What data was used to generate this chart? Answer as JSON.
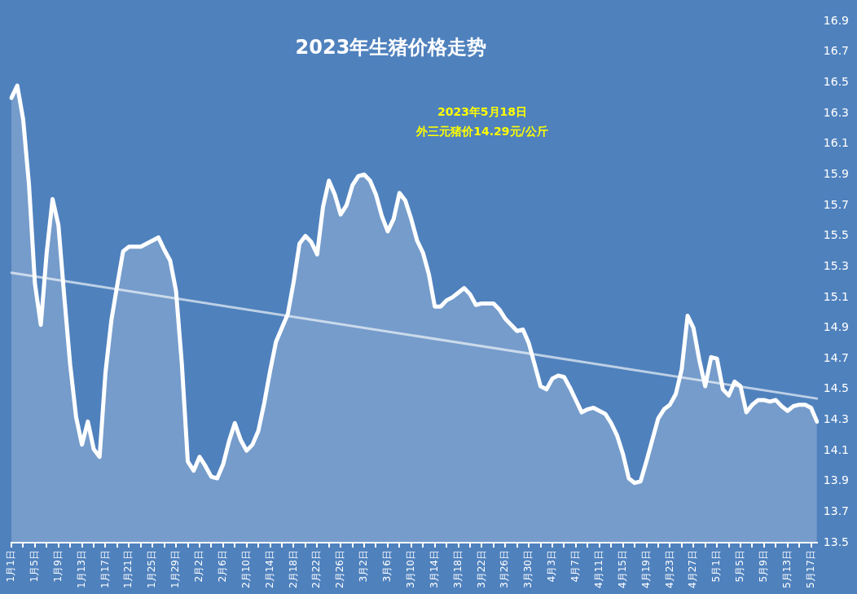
{
  "chart_data": {
    "type": "area",
    "title": "2023年生猪价格走势",
    "annotations": [
      "2023年5月18日",
      "外三元猪价14.29元/公斤"
    ],
    "categories": [
      "1月1日",
      null,
      null,
      null,
      "1月5日",
      null,
      null,
      null,
      "1月9日",
      null,
      null,
      null,
      "1月13日",
      null,
      null,
      null,
      "1月17日",
      null,
      null,
      null,
      "1月21日",
      null,
      null,
      null,
      "1月25日",
      null,
      null,
      null,
      "1月29日",
      null,
      null,
      null,
      "2月2日",
      null,
      null,
      null,
      "2月6日",
      null,
      null,
      null,
      "2月10日",
      null,
      null,
      null,
      "2月14日",
      null,
      null,
      null,
      "2月18日",
      null,
      null,
      null,
      "2月22日",
      null,
      null,
      null,
      "2月26日",
      null,
      null,
      null,
      "3月2日",
      null,
      null,
      null,
      "3月6日",
      null,
      null,
      null,
      "3月10日",
      null,
      null,
      null,
      "3月14日",
      null,
      null,
      null,
      "3月18日",
      null,
      null,
      null,
      "3月22日",
      null,
      null,
      null,
      "3月26日",
      null,
      null,
      null,
      "3月30日",
      null,
      null,
      null,
      "4月3日",
      null,
      null,
      null,
      "4月7日",
      null,
      null,
      null,
      "4月11日",
      null,
      null,
      null,
      "4月15日",
      null,
      null,
      null,
      "4月19日",
      null,
      null,
      null,
      "4月23日",
      null,
      null,
      null,
      "4月27日",
      null,
      null,
      null,
      "5月1日",
      null,
      null,
      null,
      "5月5日",
      null,
      null,
      null,
      "5月9日",
      null,
      null,
      null,
      "5月13日",
      null,
      null,
      null,
      "5月17日",
      null
    ],
    "series": [
      {
        "color": "#ffffff",
        "values": [
          16.4,
          16.48,
          16.26,
          15.83,
          15.19,
          14.92,
          15.39,
          15.74,
          15.57,
          15.1,
          14.66,
          14.32,
          14.14,
          14.29,
          14.11,
          14.06,
          14.61,
          14.95,
          15.18,
          15.4,
          15.43,
          15.43,
          15.43,
          15.45,
          15.47,
          15.49,
          15.41,
          15.34,
          15.14,
          14.66,
          14.03,
          13.97,
          14.06,
          14.0,
          13.93,
          13.92,
          14.01,
          14.16,
          14.28,
          14.17,
          14.1,
          14.14,
          14.23,
          14.41,
          14.62,
          14.81,
          14.9,
          14.99,
          15.2,
          15.45,
          15.5,
          15.46,
          15.38,
          15.69,
          15.86,
          15.77,
          15.64,
          15.7,
          15.83,
          15.89,
          15.9,
          15.86,
          15.77,
          15.63,
          15.53,
          15.61,
          15.78,
          15.73,
          15.61,
          15.47,
          15.39,
          15.25,
          15.04,
          15.04,
          15.08,
          15.1,
          15.13,
          15.16,
          15.12,
          15.05,
          15.06,
          15.06,
          15.06,
          15.02,
          14.96,
          14.92,
          14.88,
          14.89,
          14.8,
          14.66,
          14.52,
          14.5,
          14.57,
          14.59,
          14.58,
          14.51,
          14.43,
          14.35,
          14.37,
          14.38,
          14.36,
          14.34,
          14.28,
          14.2,
          14.08,
          13.92,
          13.89,
          13.9,
          14.03,
          14.17,
          14.31,
          14.37,
          14.4,
          14.47,
          14.63,
          14.98,
          14.9,
          14.69,
          14.52,
          14.71,
          14.7,
          14.5,
          14.46,
          14.55,
          14.52,
          14.35,
          14.4,
          14.43,
          14.43,
          14.42,
          14.43,
          14.39,
          14.36,
          14.39,
          14.4,
          14.4,
          14.38,
          14.29
        ]
      },
      {
        "type": "line",
        "color": "#bdd0e6",
        "values": [
          15.26,
          null,
          null,
          null,
          null,
          null,
          null,
          null,
          null,
          null,
          null,
          null,
          null,
          null,
          null,
          null,
          null,
          null,
          null,
          null,
          null,
          null,
          null,
          null,
          null,
          null,
          null,
          null,
          null,
          null,
          null,
          null,
          null,
          null,
          null,
          null,
          null,
          null,
          null,
          null,
          null,
          null,
          null,
          null,
          null,
          null,
          null,
          null,
          null,
          null,
          null,
          null,
          null,
          null,
          null,
          null,
          null,
          null,
          null,
          null,
          null,
          null,
          null,
          null,
          null,
          null,
          null,
          null,
          null,
          null,
          null,
          null,
          null,
          null,
          null,
          null,
          null,
          null,
          null,
          null,
          null,
          null,
          null,
          null,
          null,
          null,
          null,
          null,
          null,
          null,
          null,
          null,
          null,
          null,
          null,
          null,
          null,
          null,
          null,
          null,
          null,
          null,
          null,
          null,
          null,
          null,
          null,
          null,
          null,
          null,
          null,
          null,
          null,
          null,
          null,
          null,
          null,
          null,
          null,
          null,
          null,
          null,
          null,
          null,
          null,
          null,
          null,
          null,
          null,
          null,
          null,
          null,
          null,
          null,
          null,
          null,
          null,
          14.44
        ]
      }
    ],
    "ylim": [
      13.5,
      16.9
    ],
    "yticks": [
      13.5,
      13.7,
      13.9,
      14.1,
      14.3,
      14.5,
      14.7,
      14.9,
      15.1,
      15.3,
      15.5,
      15.7,
      15.9,
      16.1,
      16.3,
      16.5,
      16.7,
      16.9
    ],
    "grid": false,
    "legend": false,
    "marker": "none",
    "line_style": "solid"
  }
}
